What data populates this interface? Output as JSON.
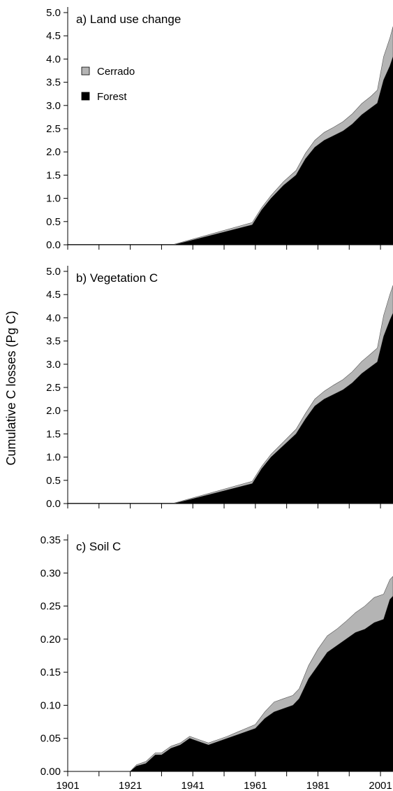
{
  "chart_data": {
    "type": "area",
    "ylabel": "Cumulative C losses (Pg C)",
    "legend": {
      "placement": "top-left (panel a)",
      "entries": [
        {
          "label": "Cerrado",
          "color": "#b4b4b4"
        },
        {
          "label": "Forest",
          "color": "#000000"
        }
      ]
    },
    "x_axis": {
      "ticks": [
        1901,
        1911,
        1921,
        1931,
        1941,
        1951,
        1961,
        1971,
        1981,
        1991,
        2001
      ],
      "tick_labels": [
        "1901",
        "1921",
        "1941",
        "1961",
        "1981",
        "2001"
      ],
      "range": [
        1901,
        2005
      ]
    },
    "panels": [
      {
        "id": "a",
        "title": "a) Land use change",
        "ylim": [
          0,
          5.0
        ],
        "yticks": [
          0.0,
          0.5,
          1.0,
          1.5,
          2.0,
          2.5,
          3.0,
          3.5,
          4.0,
          4.5,
          5.0
        ],
        "ytick_labels": [
          "0.0",
          "0.5",
          "1.0",
          "1.5",
          "2.0",
          "2.5",
          "3.0",
          "3.5",
          "4.0",
          "4.5",
          "5.0"
        ],
        "x": [
          1901,
          1935,
          1960,
          1963,
          1966,
          1970,
          1974,
          1977,
          1980,
          1983,
          1986,
          1989,
          1992,
          1995,
          1998,
          2000,
          2002,
          2004,
          2005
        ],
        "series": [
          {
            "name": "Forest",
            "values": [
              0,
              0,
              0.43,
              0.75,
              1.0,
              1.28,
              1.5,
              1.85,
              2.1,
              2.25,
              2.35,
              2.45,
              2.6,
              2.8,
              2.95,
              3.05,
              3.55,
              3.85,
              4.05
            ]
          },
          {
            "name": "Cerrado",
            "values": [
              0.01,
              0.01,
              0.05,
              0.05,
              0.06,
              0.08,
              0.1,
              0.12,
              0.15,
              0.17,
              0.18,
              0.2,
              0.22,
              0.24,
              0.25,
              0.28,
              0.5,
              0.6,
              0.65
            ]
          }
        ]
      },
      {
        "id": "b",
        "title": "b) Vegetation C",
        "ylim": [
          0,
          5.0
        ],
        "yticks": [
          0.0,
          0.5,
          1.0,
          1.5,
          2.0,
          2.5,
          3.0,
          3.5,
          4.0,
          4.5,
          5.0
        ],
        "ytick_labels": [
          "0.0",
          "0.5",
          "1.0",
          "1.5",
          "2.0",
          "2.5",
          "3.0",
          "3.5",
          "4.0",
          "4.5",
          "5.0"
        ],
        "x": [
          1901,
          1935,
          1960,
          1963,
          1966,
          1970,
          1974,
          1977,
          1980,
          1983,
          1986,
          1989,
          1992,
          1995,
          1998,
          2000,
          2002,
          2004,
          2005
        ],
        "series": [
          {
            "name": "Forest",
            "values": [
              0,
              0,
              0.43,
              0.75,
              1.0,
              1.25,
              1.5,
              1.82,
              2.1,
              2.25,
              2.35,
              2.45,
              2.6,
              2.8,
              2.95,
              3.05,
              3.6,
              3.95,
              4.1
            ]
          },
          {
            "name": "Cerrado",
            "values": [
              0.01,
              0.01,
              0.05,
              0.05,
              0.06,
              0.08,
              0.1,
              0.12,
              0.15,
              0.17,
              0.2,
              0.22,
              0.24,
              0.26,
              0.28,
              0.3,
              0.45,
              0.55,
              0.6
            ]
          }
        ]
      },
      {
        "id": "c",
        "title": "c) Soil C",
        "ylim": [
          0,
          0.35
        ],
        "yticks": [
          0.0,
          0.05,
          0.1,
          0.15,
          0.2,
          0.25,
          0.3,
          0.35
        ],
        "ytick_labels": [
          "0.00",
          "0.05",
          "0.10",
          "0.15",
          "0.20",
          "0.25",
          "0.30",
          "0.35"
        ],
        "x": [
          1901,
          1921,
          1923,
          1926,
          1929,
          1931,
          1934,
          1937,
          1940,
          1943,
          1946,
          1949,
          1952,
          1955,
          1958,
          1961,
          1964,
          1967,
          1970,
          1973,
          1975,
          1978,
          1981,
          1984,
          1987,
          1990,
          1993,
          1996,
          1999,
          2002,
          2004,
          2005
        ],
        "series": [
          {
            "name": "Forest",
            "values": [
              0,
              0,
              0.008,
              0.012,
              0.025,
              0.025,
              0.035,
              0.04,
              0.05,
              0.045,
              0.04,
              0.045,
              0.05,
              0.055,
              0.06,
              0.065,
              0.08,
              0.09,
              0.095,
              0.1,
              0.11,
              0.14,
              0.16,
              0.18,
              0.19,
              0.2,
              0.21,
              0.215,
              0.225,
              0.23,
              0.26,
              0.265
            ]
          },
          {
            "name": "Cerrado",
            "values": [
              0,
              0,
              0.002,
              0.003,
              0.003,
              0.003,
              0.003,
              0.003,
              0.003,
              0.003,
              0.003,
              0.003,
              0.003,
              0.004,
              0.005,
              0.006,
              0.01,
              0.015,
              0.015,
              0.015,
              0.015,
              0.02,
              0.025,
              0.025,
              0.025,
              0.027,
              0.03,
              0.035,
              0.038,
              0.038,
              0.03,
              0.03
            ]
          }
        ]
      }
    ]
  }
}
